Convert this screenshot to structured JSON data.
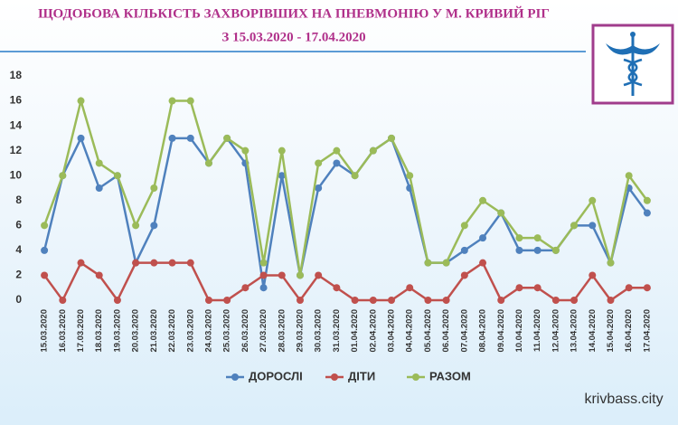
{
  "chart_data": {
    "type": "line",
    "title": "ЩОДОБОВА КІЛЬКІСТЬ ЗАХВОРІВШИХ НА ПНЕВМОНІЮ У М. КРИВИЙ РІГ",
    "subtitle": "З 15.03.2020 - 17.04.2020",
    "categories": [
      "15.03.2020",
      "16.03.2020",
      "17.03.2020",
      "18.03.2020",
      "19.03.2020",
      "20.03.2020",
      "21.03.2020",
      "22.03.2020",
      "23.03.2020",
      "24.03.2020",
      "25.03.2020",
      "26.03.2020",
      "27.03.2020",
      "28.03.2020",
      "29.03.2020",
      "30.03.2020",
      "31.03.2020",
      "01.04.2020",
      "02.04.2020",
      "03.04.2020",
      "04.04.2020",
      "05.04.2020",
      "06.04.2020",
      "07.04.2020",
      "08.04.2020",
      "09.04.2020",
      "10.04.2020",
      "11.04.2020",
      "12.04.2020",
      "13.04.2020",
      "14.04.2020",
      "15.04.2020",
      "16.04.2020",
      "17.04.2020"
    ],
    "series": [
      {
        "name": "ДОРОСЛІ",
        "color": "#4f81bd",
        "values": [
          4,
          10,
          13,
          9,
          10,
          3,
          6,
          13,
          13,
          11,
          13,
          11,
          1,
          10,
          2,
          9,
          11,
          10,
          12,
          13,
          9,
          3,
          3,
          4,
          5,
          7,
          4,
          4,
          4,
          6,
          6,
          3,
          9,
          7
        ]
      },
      {
        "name": "ДІТИ",
        "color": "#c0504d",
        "values": [
          2,
          0,
          3,
          2,
          0,
          3,
          3,
          3,
          3,
          0,
          0,
          1,
          2,
          2,
          0,
          2,
          1,
          0,
          0,
          0,
          1,
          0,
          0,
          2,
          3,
          0,
          1,
          1,
          0,
          0,
          2,
          0,
          1,
          1
        ]
      },
      {
        "name": "РАЗОМ",
        "color": "#9bbb59",
        "values": [
          6,
          10,
          16,
          11,
          10,
          6,
          9,
          16,
          16,
          11,
          13,
          12,
          3,
          12,
          2,
          11,
          12,
          10,
          12,
          13,
          10,
          3,
          3,
          6,
          8,
          7,
          5,
          5,
          4,
          6,
          8,
          3,
          10,
          8
        ]
      }
    ],
    "ylim": [
      0,
      18
    ],
    "yticks": [
      0,
      2,
      4,
      6,
      8,
      10,
      12,
      14,
      16,
      18
    ],
    "grid": false,
    "legend": "bottom"
  },
  "watermark": "krivbass.city"
}
